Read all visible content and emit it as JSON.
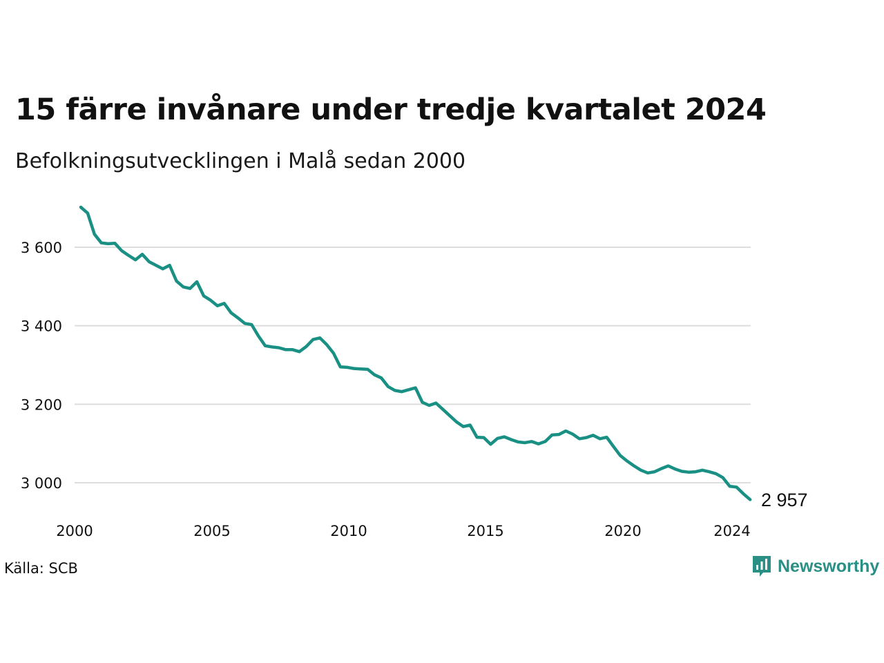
{
  "title": "15 färre invånare under tredje kvartalet 2024",
  "subtitle": "Befolkningsutvecklingen i Malå sedan 2000",
  "source": "Källa: SCB",
  "brand": {
    "name": "Newsworthy",
    "icon": "newsworthy-logo-icon",
    "color": "#2a8f85"
  },
  "colors": {
    "line": "#1a9084",
    "grid": "#dddddd",
    "text": "#111111"
  },
  "chart_data": {
    "type": "line",
    "title": "15 färre invånare under tredje kvartalet 2024",
    "subtitle": "Befolkningsutvecklingen i Malå sedan 2000",
    "x_ticks": [
      "2000",
      "2005",
      "2010",
      "2015",
      "2020",
      "2024"
    ],
    "y_ticks": [
      "3 000",
      "3 200",
      "3 400",
      "3 600"
    ],
    "ylim": [
      2920,
      3730
    ],
    "grid": "horizontal",
    "end_label": "2 957",
    "series": [
      {
        "color": "#1a9084",
        "x": [
          "2000K1",
          "2000K2",
          "2000K3",
          "2000K4",
          "2001K1",
          "2001K2",
          "2001K3",
          "2001K4",
          "2002K1",
          "2002K2",
          "2002K3",
          "2002K4",
          "2003K1",
          "2003K2",
          "2003K3",
          "2003K4",
          "2004K1",
          "2004K2",
          "2004K3",
          "2004K4",
          "2005K1",
          "2005K2",
          "2005K3",
          "2005K4",
          "2006K1",
          "2006K2",
          "2006K3",
          "2006K4",
          "2007K1",
          "2007K2",
          "2007K3",
          "2007K4",
          "2008K1",
          "2008K2",
          "2008K3",
          "2008K4",
          "2009K1",
          "2009K2",
          "2009K3",
          "2009K4",
          "2010K1",
          "2010K2",
          "2010K3",
          "2010K4",
          "2011K1",
          "2011K2",
          "2011K3",
          "2011K4",
          "2012K1",
          "2012K2",
          "2012K3",
          "2012K4",
          "2013K1",
          "2013K2",
          "2013K3",
          "2013K4",
          "2014K1",
          "2014K2",
          "2014K3",
          "2014K4",
          "2015K1",
          "2015K2",
          "2015K3",
          "2015K4",
          "2016K1",
          "2016K2",
          "2016K3",
          "2016K4",
          "2017K1",
          "2017K2",
          "2017K3",
          "2017K4",
          "2018K1",
          "2018K2",
          "2018K3",
          "2018K4",
          "2019K1",
          "2019K2",
          "2019K3",
          "2019K4",
          "2020K1",
          "2020K2",
          "2020K3",
          "2020K4",
          "2021K1",
          "2021K2",
          "2021K3",
          "2021K4",
          "2022K1",
          "2022K2",
          "2022K3",
          "2022K4",
          "2023K1",
          "2023K2",
          "2023K3",
          "2023K4",
          "2024K1",
          "2024K2",
          "2024K3"
        ],
        "values": [
          3702,
          3687,
          3633,
          3611,
          3609,
          3610,
          3591,
          3579,
          3568,
          3582,
          3563,
          3554,
          3545,
          3554,
          3514,
          3499,
          3495,
          3512,
          3476,
          3465,
          3451,
          3457,
          3433,
          3420,
          3406,
          3403,
          3374,
          3349,
          3346,
          3344,
          3339,
          3339,
          3334,
          3347,
          3365,
          3369,
          3352,
          3330,
          3295,
          3294,
          3291,
          3290,
          3289,
          3275,
          3267,
          3245,
          3235,
          3232,
          3237,
          3242,
          3205,
          3197,
          3203,
          3187,
          3171,
          3155,
          3143,
          3147,
          3116,
          3115,
          3098,
          3113,
          3117,
          3110,
          3104,
          3102,
          3105,
          3099,
          3105,
          3122,
          3123,
          3132,
          3124,
          3112,
          3115,
          3121,
          3112,
          3116,
          3092,
          3069,
          3055,
          3043,
          3032,
          3025,
          3028,
          3036,
          3043,
          3035,
          3029,
          3027,
          3028,
          3032,
          3028,
          3023,
          3013,
          2991,
          2989,
          2972,
          2957
        ]
      }
    ]
  }
}
